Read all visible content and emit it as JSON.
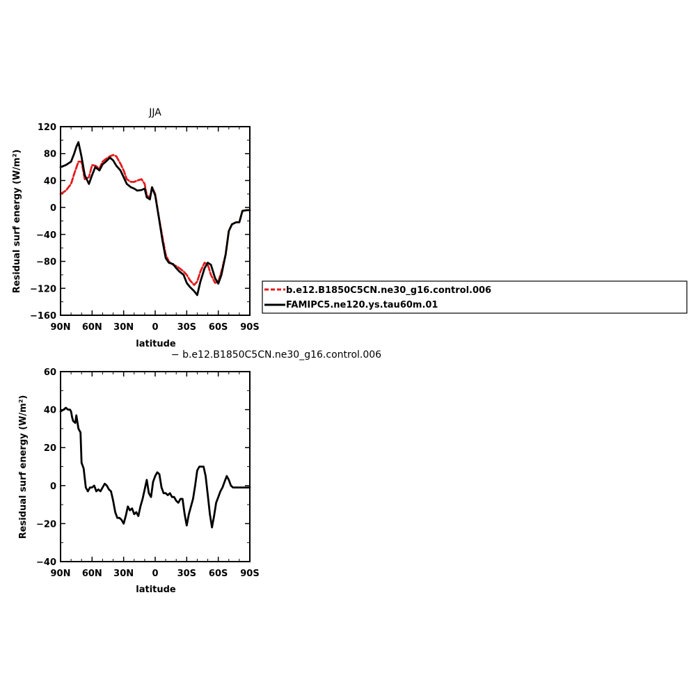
{
  "chart_data": [
    {
      "type": "line",
      "title": "JJA",
      "xlabel": "latitude",
      "ylabel": "Residual surf energy (W/m²)",
      "xlim": [
        90,
        -90
      ],
      "ylim": [
        -160,
        120
      ],
      "grid": false,
      "legend_position": "right",
      "x_ticks": [
        "90N",
        "60N",
        "30N",
        "0",
        "30S",
        "60S",
        "90S"
      ],
      "y_ticks": [
        "120",
        "80",
        "40",
        "0",
        "−40",
        "−80",
        "−120",
        "−160"
      ],
      "series": [
        {
          "name": "b.e12.B1850C5CN.ne30_g16.control.006",
          "color": "#e41a1c",
          "dash": "dashed",
          "x": [
            90,
            85,
            80,
            77,
            73,
            70,
            67,
            63,
            60,
            57,
            53,
            50,
            47,
            43,
            40,
            37,
            33,
            30,
            27,
            23,
            20,
            17,
            13,
            10,
            8,
            5,
            3,
            0,
            -3,
            -7,
            -10,
            -13,
            -17,
            -20,
            -23,
            -27,
            -30,
            -33,
            -37,
            -40,
            -43,
            -47,
            -50,
            -53,
            -57,
            -60,
            -63,
            -67,
            -70,
            -73,
            -77,
            -80,
            -83,
            -87,
            -90
          ],
          "y": [
            20,
            25,
            35,
            50,
            68,
            68,
            42,
            45,
            63,
            62,
            58,
            68,
            72,
            76,
            78,
            76,
            65,
            55,
            42,
            38,
            38,
            40,
            42,
            35,
            18,
            15,
            30,
            20,
            -10,
            -45,
            -70,
            -80,
            -85,
            -87,
            -90,
            -95,
            -100,
            -108,
            -115,
            -110,
            -95,
            -82,
            -85,
            -100,
            -112,
            -110,
            -95,
            -70,
            -35,
            -25,
            -22,
            -22,
            -5,
            -4,
            -4
          ]
        },
        {
          "name": "FAMIPC5.ne120.ys.tau60m.01",
          "color": "#000000",
          "dash": "solid",
          "x": [
            90,
            85,
            80,
            77,
            75,
            73,
            70,
            67,
            63,
            60,
            57,
            53,
            50,
            47,
            43,
            40,
            37,
            33,
            30,
            27,
            23,
            20,
            17,
            13,
            10,
            8,
            5,
            3,
            0,
            -3,
            -7,
            -10,
            -13,
            -17,
            -20,
            -23,
            -27,
            -30,
            -33,
            -37,
            -40,
            -43,
            -47,
            -50,
            -53,
            -57,
            -60,
            -63,
            -67,
            -70,
            -73,
            -77,
            -80,
            -83,
            -87,
            -90
          ],
          "y": [
            60,
            63,
            68,
            80,
            90,
            97,
            75,
            48,
            35,
            48,
            60,
            55,
            64,
            68,
            74,
            70,
            62,
            55,
            45,
            35,
            30,
            28,
            25,
            26,
            28,
            15,
            12,
            30,
            18,
            -10,
            -50,
            -75,
            -82,
            -84,
            -90,
            -95,
            -100,
            -112,
            -118,
            -124,
            -130,
            -110,
            -90,
            -82,
            -85,
            -105,
            -113,
            -100,
            -70,
            -35,
            -25,
            -22,
            -22,
            -5,
            -4,
            -4
          ]
        }
      ]
    },
    {
      "type": "line",
      "title": "− b.e12.B1850C5CN.ne30_g16.control.006",
      "xlabel": "latitude",
      "ylabel": "Residual surf energy (W/m²)",
      "xlim": [
        90,
        -90
      ],
      "ylim": [
        -40,
        60
      ],
      "grid": false,
      "x_ticks": [
        "90N",
        "60N",
        "30N",
        "0",
        "30S",
        "60S",
        "90S"
      ],
      "y_ticks": [
        "60",
        "40",
        "20",
        "0",
        "−20",
        "−40"
      ],
      "series": [
        {
          "color": "#000000",
          "x": [
            90,
            87,
            85,
            83,
            81,
            80,
            79,
            78,
            76,
            75,
            73,
            71,
            70,
            68,
            66,
            64,
            62,
            60,
            58,
            56,
            54,
            52,
            50,
            48,
            46,
            44,
            42,
            40,
            38,
            36,
            34,
            32,
            30,
            28,
            26,
            24,
            22,
            20,
            18,
            16,
            14,
            12,
            10,
            8,
            6,
            4,
            2,
            0,
            -2,
            -4,
            -6,
            -8,
            -10,
            -12,
            -14,
            -16,
            -18,
            -20,
            -22,
            -24,
            -26,
            -28,
            -30,
            -32,
            -34,
            -36,
            -38,
            -40,
            -42,
            -44,
            -46,
            -48,
            -50,
            -52,
            -54,
            -56,
            -58,
            -60,
            -62,
            -64,
            -66,
            -68,
            -70,
            -72,
            -74,
            -76,
            -78,
            -80,
            -82,
            -84,
            -86,
            -88,
            -90
          ],
          "y": [
            39,
            40,
            41,
            40,
            40,
            39,
            36,
            34,
            33,
            37,
            30,
            28,
            12,
            9,
            -1,
            -3,
            -1,
            -1,
            0,
            -3,
            -2,
            -3,
            -1,
            1,
            0,
            -2,
            -3,
            -8,
            -14,
            -17,
            -17,
            -18,
            -20,
            -16,
            -11,
            -13,
            -12,
            -15,
            -14,
            -16,
            -11,
            -7,
            -2,
            3,
            -4,
            -6,
            2,
            5,
            7,
            6,
            -1,
            -4,
            -4,
            -5,
            -4,
            -6,
            -6,
            -8,
            -9,
            -7,
            -7,
            -15,
            -21,
            -15,
            -11,
            -7,
            0,
            8,
            10,
            10,
            10,
            5,
            -5,
            -15,
            -22,
            -16,
            -9,
            -6,
            -3,
            -1,
            2,
            5,
            3,
            0,
            -1,
            -1,
            -1,
            -1,
            -1,
            -1,
            -1,
            -1,
            -1
          ]
        }
      ]
    }
  ]
}
